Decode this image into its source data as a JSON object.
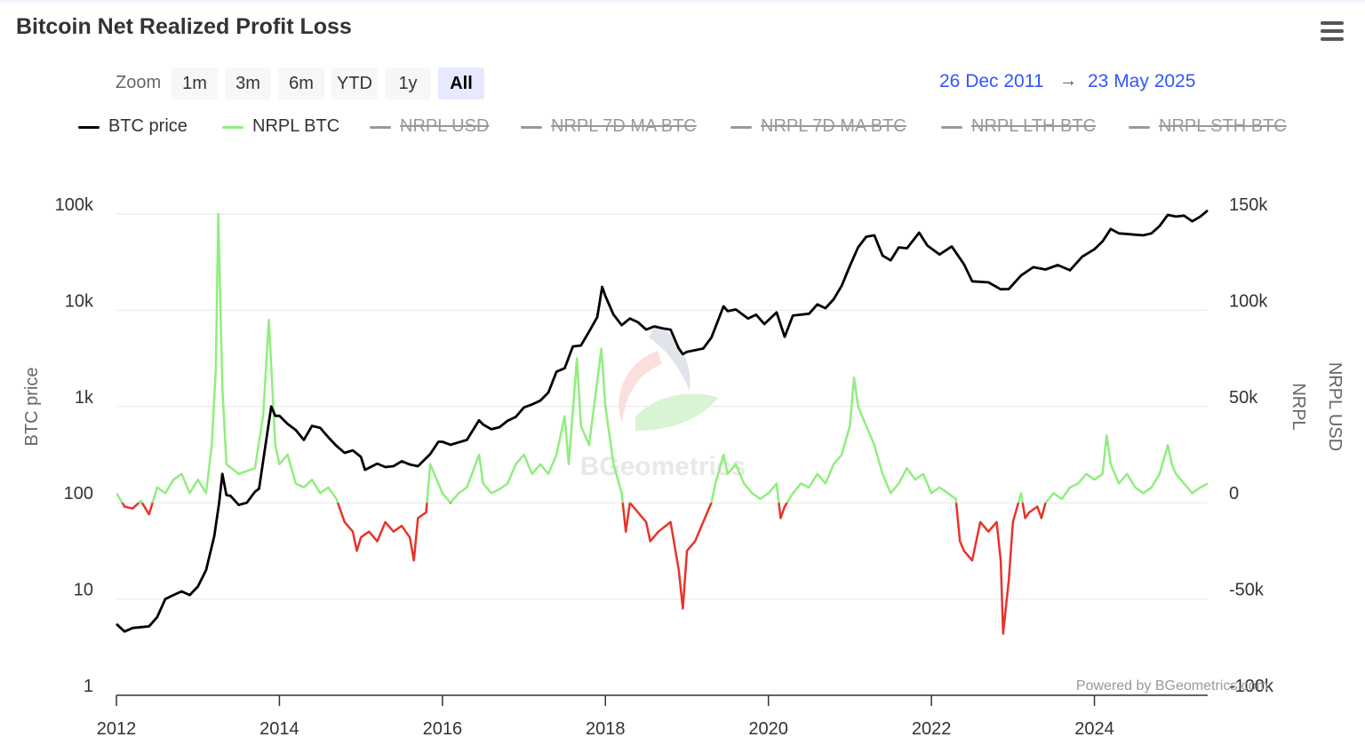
{
  "header": {
    "title": "Bitcoin Net Realized Profit Loss"
  },
  "zoom": {
    "label": "Zoom",
    "buttons": [
      "1m",
      "3m",
      "6m",
      "YTD",
      "1y",
      "All"
    ],
    "active": "All"
  },
  "range": {
    "from": "26 Dec 2011",
    "arrow": "→",
    "to": "23 May 2025"
  },
  "legend": [
    {
      "label": "BTC price",
      "color": "#000000",
      "visible": true
    },
    {
      "label": "NRPL BTC",
      "color": "#90ee7e",
      "visible": true
    },
    {
      "label": "NRPL USD",
      "color": "#999999",
      "visible": false
    },
    {
      "label": "NRPL 7D MA BTC",
      "color": "#999999",
      "visible": false
    },
    {
      "label": "NRPL 7D MA BTC",
      "color": "#999999",
      "visible": false
    },
    {
      "label": "NRPL LTH BTC",
      "color": "#999999",
      "visible": false
    },
    {
      "label": "NRPL STH BTC",
      "color": "#999999",
      "visible": false
    }
  ],
  "credits": "Powered by BGeometrics.com",
  "watermark": "BGeometrics",
  "chart_data": {
    "type": "line",
    "x_range": [
      2012.0,
      2025.39
    ],
    "x_ticks": [
      "2012",
      "2014",
      "2016",
      "2018",
      "2020",
      "2022",
      "2024"
    ],
    "grid": true,
    "legend_position": "top",
    "y_left": {
      "label": "BTC price",
      "scale": "log",
      "range": [
        1,
        100000
      ],
      "ticks": [
        "1",
        "10",
        "100",
        "1k",
        "10k",
        "100k"
      ]
    },
    "y_right": {
      "label": "NRPL",
      "second_label": "NRPL USD",
      "scale": "linear",
      "range": [
        -100000,
        150000
      ],
      "ticks": [
        "-100k",
        "-50k",
        "0",
        "50k",
        "100k",
        "150k"
      ]
    },
    "series": [
      {
        "name": "BTC price",
        "axis": "left",
        "color": "#000000",
        "points": [
          [
            2012.0,
            5.5
          ],
          [
            2012.1,
            4.6
          ],
          [
            2012.2,
            5
          ],
          [
            2012.3,
            5.1
          ],
          [
            2012.4,
            5.2
          ],
          [
            2012.5,
            6.5
          ],
          [
            2012.6,
            10
          ],
          [
            2012.7,
            11
          ],
          [
            2012.8,
            12
          ],
          [
            2012.9,
            11
          ],
          [
            2013.0,
            13.5
          ],
          [
            2013.1,
            20
          ],
          [
            2013.2,
            45
          ],
          [
            2013.26,
            100
          ],
          [
            2013.3,
            200
          ],
          [
            2013.35,
            120
          ],
          [
            2013.4,
            118
          ],
          [
            2013.5,
            95
          ],
          [
            2013.6,
            100
          ],
          [
            2013.7,
            130
          ],
          [
            2013.75,
            140
          ],
          [
            2013.83,
            400
          ],
          [
            2013.9,
            1000
          ],
          [
            2013.95,
            800
          ],
          [
            2014.0,
            800
          ],
          [
            2014.1,
            660
          ],
          [
            2014.2,
            570
          ],
          [
            2014.3,
            450
          ],
          [
            2014.4,
            630
          ],
          [
            2014.5,
            600
          ],
          [
            2014.6,
            480
          ],
          [
            2014.7,
            390
          ],
          [
            2014.8,
            330
          ],
          [
            2014.9,
            350
          ],
          [
            2015.0,
            300
          ],
          [
            2015.05,
            220
          ],
          [
            2015.2,
            255
          ],
          [
            2015.3,
            235
          ],
          [
            2015.4,
            240
          ],
          [
            2015.5,
            270
          ],
          [
            2015.6,
            250
          ],
          [
            2015.7,
            240
          ],
          [
            2015.85,
            320
          ],
          [
            2015.95,
            430
          ],
          [
            2016.0,
            430
          ],
          [
            2016.1,
            400
          ],
          [
            2016.3,
            450
          ],
          [
            2016.45,
            720
          ],
          [
            2016.5,
            650
          ],
          [
            2016.6,
            580
          ],
          [
            2016.7,
            610
          ],
          [
            2016.8,
            710
          ],
          [
            2016.9,
            780
          ],
          [
            2017.0,
            980
          ],
          [
            2017.1,
            1050
          ],
          [
            2017.2,
            1150
          ],
          [
            2017.3,
            1400
          ],
          [
            2017.4,
            2300
          ],
          [
            2017.5,
            2500
          ],
          [
            2017.6,
            4200
          ],
          [
            2017.7,
            4300
          ],
          [
            2017.8,
            6000
          ],
          [
            2017.9,
            8500
          ],
          [
            2017.96,
            17500
          ],
          [
            2018.0,
            14000
          ],
          [
            2018.1,
            9000
          ],
          [
            2018.2,
            7000
          ],
          [
            2018.3,
            8200
          ],
          [
            2018.4,
            7500
          ],
          [
            2018.5,
            6300
          ],
          [
            2018.6,
            6800
          ],
          [
            2018.7,
            6500
          ],
          [
            2018.8,
            6300
          ],
          [
            2018.9,
            4000
          ],
          [
            2018.95,
            3500
          ],
          [
            2019.0,
            3700
          ],
          [
            2019.2,
            4000
          ],
          [
            2019.3,
            5200
          ],
          [
            2019.45,
            11000
          ],
          [
            2019.5,
            9800
          ],
          [
            2019.6,
            10200
          ],
          [
            2019.75,
            8200
          ],
          [
            2019.85,
            9000
          ],
          [
            2019.95,
            7200
          ],
          [
            2020.1,
            9500
          ],
          [
            2020.2,
            5300
          ],
          [
            2020.3,
            8800
          ],
          [
            2020.5,
            9200
          ],
          [
            2020.6,
            11500
          ],
          [
            2020.7,
            10500
          ],
          [
            2020.8,
            13000
          ],
          [
            2020.9,
            18000
          ],
          [
            2021.0,
            29000
          ],
          [
            2021.1,
            45000
          ],
          [
            2021.2,
            58000
          ],
          [
            2021.3,
            60000
          ],
          [
            2021.4,
            37000
          ],
          [
            2021.5,
            33000
          ],
          [
            2021.6,
            45000
          ],
          [
            2021.7,
            44000
          ],
          [
            2021.85,
            64000
          ],
          [
            2021.95,
            47000
          ],
          [
            2022.1,
            38000
          ],
          [
            2022.25,
            46000
          ],
          [
            2022.4,
            30000
          ],
          [
            2022.5,
            20000
          ],
          [
            2022.7,
            19500
          ],
          [
            2022.85,
            16500
          ],
          [
            2022.95,
            16600
          ],
          [
            2023.1,
            23000
          ],
          [
            2023.25,
            28000
          ],
          [
            2023.4,
            26500
          ],
          [
            2023.55,
            29500
          ],
          [
            2023.7,
            26000
          ],
          [
            2023.85,
            36000
          ],
          [
            2024.0,
            43000
          ],
          [
            2024.1,
            52000
          ],
          [
            2024.2,
            70000
          ],
          [
            2024.3,
            63000
          ],
          [
            2024.5,
            61000
          ],
          [
            2024.6,
            60000
          ],
          [
            2024.7,
            63000
          ],
          [
            2024.8,
            75000
          ],
          [
            2024.9,
            98000
          ],
          [
            2025.0,
            94000
          ],
          [
            2025.1,
            96000
          ],
          [
            2025.2,
            84000
          ],
          [
            2025.3,
            94000
          ],
          [
            2025.39,
            109000
          ]
        ]
      },
      {
        "name": "NRPL BTC",
        "axis": "right",
        "color": "#90ee7e",
        "negative_color": "#e8332a",
        "points": [
          [
            2012.0,
            5000
          ],
          [
            2012.1,
            -2000
          ],
          [
            2012.2,
            -3000
          ],
          [
            2012.3,
            1000
          ],
          [
            2012.4,
            -6000
          ],
          [
            2012.5,
            8000
          ],
          [
            2012.6,
            5000
          ],
          [
            2012.7,
            12000
          ],
          [
            2012.8,
            15000
          ],
          [
            2012.9,
            5000
          ],
          [
            2013.0,
            12000
          ],
          [
            2013.1,
            5000
          ],
          [
            2013.17,
            30000
          ],
          [
            2013.22,
            70000
          ],
          [
            2013.25,
            150000
          ],
          [
            2013.3,
            60000
          ],
          [
            2013.35,
            20000
          ],
          [
            2013.5,
            15000
          ],
          [
            2013.7,
            18000
          ],
          [
            2013.8,
            45000
          ],
          [
            2013.87,
            95000
          ],
          [
            2013.95,
            30000
          ],
          [
            2014.0,
            20000
          ],
          [
            2014.1,
            25000
          ],
          [
            2014.2,
            10000
          ],
          [
            2014.3,
            8000
          ],
          [
            2014.4,
            12000
          ],
          [
            2014.5,
            5000
          ],
          [
            2014.6,
            8000
          ],
          [
            2014.7,
            2000
          ],
          [
            2014.8,
            -10000
          ],
          [
            2014.9,
            -15000
          ],
          [
            2014.95,
            -25000
          ],
          [
            2015.0,
            -18000
          ],
          [
            2015.1,
            -15000
          ],
          [
            2015.2,
            -20000
          ],
          [
            2015.3,
            -10000
          ],
          [
            2015.4,
            -15000
          ],
          [
            2015.5,
            -12000
          ],
          [
            2015.6,
            -18000
          ],
          [
            2015.65,
            -30000
          ],
          [
            2015.7,
            -8000
          ],
          [
            2015.8,
            -5000
          ],
          [
            2015.85,
            20000
          ],
          [
            2015.95,
            10000
          ],
          [
            2016.0,
            5000
          ],
          [
            2016.1,
            0
          ],
          [
            2016.2,
            5000
          ],
          [
            2016.3,
            8000
          ],
          [
            2016.45,
            25000
          ],
          [
            2016.5,
            10000
          ],
          [
            2016.6,
            5000
          ],
          [
            2016.7,
            7000
          ],
          [
            2016.8,
            10000
          ],
          [
            2016.9,
            20000
          ],
          [
            2017.0,
            25000
          ],
          [
            2017.1,
            15000
          ],
          [
            2017.2,
            20000
          ],
          [
            2017.3,
            15000
          ],
          [
            2017.4,
            25000
          ],
          [
            2017.5,
            45000
          ],
          [
            2017.55,
            20000
          ],
          [
            2017.65,
            75000
          ],
          [
            2017.7,
            40000
          ],
          [
            2017.8,
            30000
          ],
          [
            2017.95,
            80000
          ],
          [
            2018.0,
            50000
          ],
          [
            2018.1,
            20000
          ],
          [
            2018.2,
            5000
          ],
          [
            2018.25,
            -15000
          ],
          [
            2018.3,
            0
          ],
          [
            2018.4,
            -5000
          ],
          [
            2018.5,
            -10000
          ],
          [
            2018.55,
            -20000
          ],
          [
            2018.65,
            -15000
          ],
          [
            2018.8,
            -10000
          ],
          [
            2018.9,
            -35000
          ],
          [
            2018.95,
            -55000
          ],
          [
            2019.0,
            -25000
          ],
          [
            2019.1,
            -20000
          ],
          [
            2019.2,
            -10000
          ],
          [
            2019.3,
            0
          ],
          [
            2019.35,
            10000
          ],
          [
            2019.45,
            25000
          ],
          [
            2019.5,
            15000
          ],
          [
            2019.6,
            20000
          ],
          [
            2019.7,
            10000
          ],
          [
            2019.8,
            5000
          ],
          [
            2019.9,
            2000
          ],
          [
            2020.0,
            5000
          ],
          [
            2020.1,
            10000
          ],
          [
            2020.15,
            -8000
          ],
          [
            2020.2,
            -2000
          ],
          [
            2020.3,
            5000
          ],
          [
            2020.4,
            10000
          ],
          [
            2020.5,
            8000
          ],
          [
            2020.6,
            15000
          ],
          [
            2020.7,
            10000
          ],
          [
            2020.8,
            20000
          ],
          [
            2020.9,
            25000
          ],
          [
            2021.0,
            40000
          ],
          [
            2021.05,
            65000
          ],
          [
            2021.1,
            50000
          ],
          [
            2021.2,
            40000
          ],
          [
            2021.3,
            30000
          ],
          [
            2021.4,
            15000
          ],
          [
            2021.5,
            5000
          ],
          [
            2021.6,
            10000
          ],
          [
            2021.7,
            18000
          ],
          [
            2021.8,
            12000
          ],
          [
            2021.9,
            15000
          ],
          [
            2022.0,
            5000
          ],
          [
            2022.1,
            8000
          ],
          [
            2022.2,
            5000
          ],
          [
            2022.3,
            2000
          ],
          [
            2022.35,
            -20000
          ],
          [
            2022.4,
            -25000
          ],
          [
            2022.5,
            -30000
          ],
          [
            2022.55,
            -20000
          ],
          [
            2022.6,
            -10000
          ],
          [
            2022.7,
            -15000
          ],
          [
            2022.8,
            -10000
          ],
          [
            2022.85,
            -30000
          ],
          [
            2022.88,
            -68000
          ],
          [
            2022.95,
            -40000
          ],
          [
            2023.0,
            -10000
          ],
          [
            2023.1,
            5000
          ],
          [
            2023.15,
            -8000
          ],
          [
            2023.2,
            -5000
          ],
          [
            2023.3,
            -2000
          ],
          [
            2023.35,
            -8000
          ],
          [
            2023.4,
            0
          ],
          [
            2023.5,
            5000
          ],
          [
            2023.6,
            2000
          ],
          [
            2023.7,
            8000
          ],
          [
            2023.8,
            10000
          ],
          [
            2023.9,
            15000
          ],
          [
            2024.0,
            12000
          ],
          [
            2024.1,
            15000
          ],
          [
            2024.15,
            35000
          ],
          [
            2024.2,
            20000
          ],
          [
            2024.3,
            10000
          ],
          [
            2024.4,
            15000
          ],
          [
            2024.5,
            8000
          ],
          [
            2024.6,
            5000
          ],
          [
            2024.7,
            8000
          ],
          [
            2024.8,
            15000
          ],
          [
            2024.9,
            30000
          ],
          [
            2024.95,
            20000
          ],
          [
            2025.0,
            15000
          ],
          [
            2025.1,
            10000
          ],
          [
            2025.2,
            5000
          ],
          [
            2025.3,
            8000
          ],
          [
            2025.39,
            10000
          ]
        ]
      }
    ]
  }
}
